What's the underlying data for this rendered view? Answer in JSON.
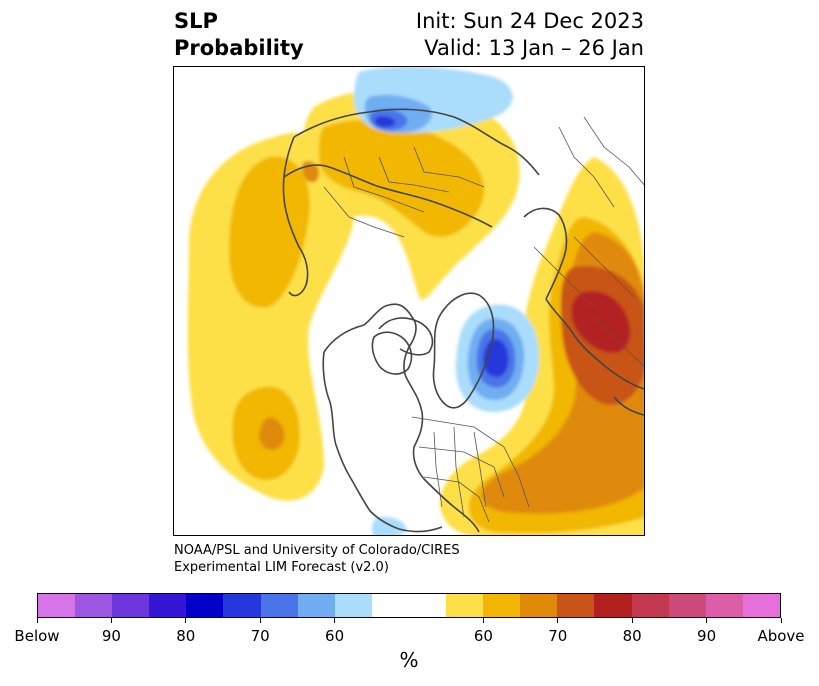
{
  "title": {
    "left_line1": "SLP",
    "left_line2": "Probability",
    "right_line1": "Init: Sun 24 Dec 2023",
    "right_line2": "Valid: 13 Jan – 26 Jan"
  },
  "credit": {
    "line1": "NOAA/PSL and University of Colorado/CIRES",
    "line2": "Experimental LIM Forecast (v2.0)"
  },
  "colorbar": {
    "colors": [
      "#d675e8",
      "#9e57e2",
      "#6b36dc",
      "#3615d4",
      "#0000c8",
      "#2637db",
      "#4a75e8",
      "#70aef1",
      "#aadcfb",
      "#ffffff",
      "#ffffff",
      "#fde047",
      "#f2b705",
      "#e08a0a",
      "#c85418",
      "#b32020",
      "#c2384e",
      "#cc4b7b",
      "#da5ea8",
      "#e670d9"
    ],
    "tick_labels": [
      "Below",
      "90",
      "80",
      "70",
      "60",
      "60",
      "70",
      "80",
      "90",
      "Above"
    ],
    "units": "%"
  },
  "map": {
    "below_colors": [
      "#aadcfb",
      "#70aef1",
      "#4a75e8",
      "#2637db"
    ],
    "above_colors": [
      "#fde047",
      "#f2b705",
      "#e08a0a",
      "#c85418",
      "#b32020"
    ],
    "coastline_color": "#444444"
  }
}
